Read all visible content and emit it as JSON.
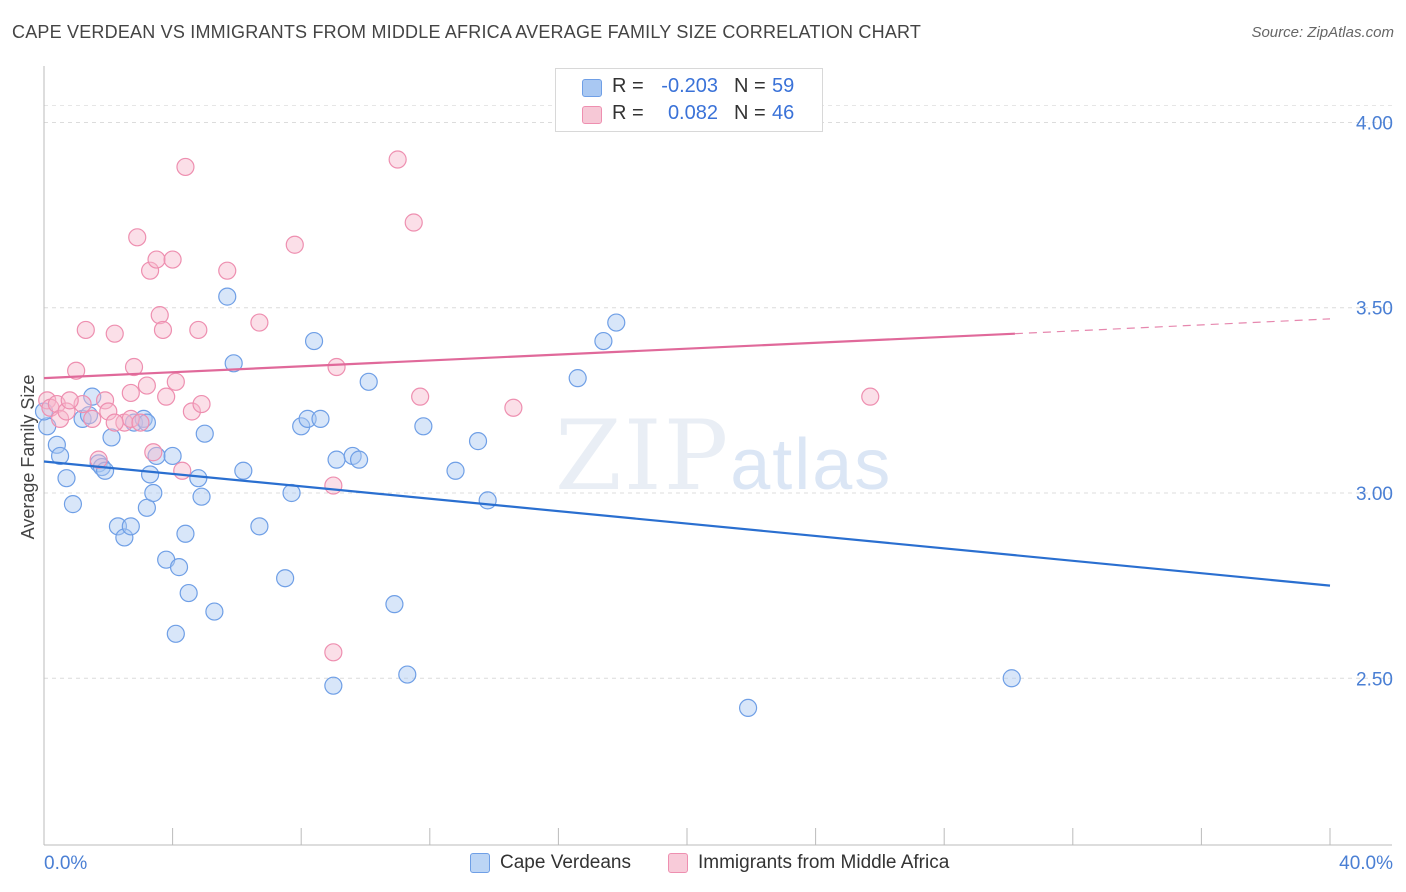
{
  "header": {
    "title": "CAPE VERDEAN VS IMMIGRANTS FROM MIDDLE AFRICA AVERAGE FAMILY SIZE CORRELATION CHART",
    "source": "Source: ZipAtlas.com"
  },
  "watermark": {
    "zip": "ZIP",
    "atlas": "atlas"
  },
  "legend": {
    "rows": [
      {
        "r_label": "R =",
        "r_value": "-0.203",
        "n_label": "N =",
        "n_value": "59",
        "color": "#a9c8f2"
      },
      {
        "r_label": "R =",
        "r_value": "0.082",
        "n_label": "N =",
        "n_value": "46",
        "color": "#f6b9cb"
      }
    ]
  },
  "bottom_legend": {
    "items": [
      {
        "label": "Cape Verdeans",
        "color": "#a9c8f2"
      },
      {
        "label": "Immigrants from Middle Africa",
        "color": "#f6b9cb"
      }
    ]
  },
  "chart_data": {
    "type": "scatter",
    "ylabel": "Average Family Size",
    "xlim": [
      0,
      0.4
    ],
    "ylim": [
      2.05,
      4.12
    ],
    "x_tick_labels": [
      "0.0%",
      "40.0%"
    ],
    "y_ticks": [
      2.5,
      3.0,
      3.5,
      4.0
    ],
    "y_tick_labels": [
      "2.50",
      "3.00",
      "3.50",
      "4.00"
    ],
    "grid": true,
    "series": [
      {
        "name": "Cape Verdeans",
        "color": "#6f9fe6",
        "fill": "#a9c8f2",
        "trend": {
          "x": [
            0.0,
            0.4
          ],
          "y": [
            3.085,
            2.75
          ],
          "color": "#2a6fd0"
        },
        "points": [
          [
            0.001,
            3.18
          ],
          [
            0.004,
            3.13
          ],
          [
            0.005,
            3.1
          ],
          [
            0.007,
            3.04
          ],
          [
            0.009,
            2.97
          ],
          [
            0.012,
            3.2
          ],
          [
            0.014,
            3.21
          ],
          [
            0.015,
            3.26
          ],
          [
            0.017,
            3.08
          ],
          [
            0.018,
            3.07
          ],
          [
            0.019,
            3.06
          ],
          [
            0.021,
            3.15
          ],
          [
            0.023,
            2.91
          ],
          [
            0.025,
            2.88
          ],
          [
            0.027,
            2.91
          ],
          [
            0.028,
            3.19
          ],
          [
            0.031,
            3.2
          ],
          [
            0.032,
            2.96
          ],
          [
            0.033,
            3.05
          ],
          [
            0.032,
            3.19
          ],
          [
            0.035,
            3.1
          ],
          [
            0.038,
            2.82
          ],
          [
            0.04,
            3.1
          ],
          [
            0.041,
            2.62
          ],
          [
            0.042,
            2.8
          ],
          [
            0.044,
            2.89
          ],
          [
            0.045,
            2.73
          ],
          [
            0.048,
            3.04
          ],
          [
            0.049,
            2.99
          ],
          [
            0.05,
            3.16
          ],
          [
            0.053,
            2.68
          ],
          [
            0.057,
            3.53
          ],
          [
            0.059,
            3.35
          ],
          [
            0.062,
            3.06
          ],
          [
            0.067,
            2.91
          ],
          [
            0.075,
            2.77
          ],
          [
            0.077,
            3.0
          ],
          [
            0.08,
            3.18
          ],
          [
            0.082,
            3.2
          ],
          [
            0.084,
            3.41
          ],
          [
            0.086,
            3.2
          ],
          [
            0.09,
            2.48
          ],
          [
            0.091,
            3.09
          ],
          [
            0.096,
            3.1
          ],
          [
            0.098,
            3.09
          ],
          [
            0.101,
            3.3
          ],
          [
            0.109,
            2.7
          ],
          [
            0.113,
            2.51
          ],
          [
            0.118,
            3.18
          ],
          [
            0.128,
            3.06
          ],
          [
            0.135,
            3.14
          ],
          [
            0.138,
            2.98
          ],
          [
            0.166,
            3.31
          ],
          [
            0.174,
            3.41
          ],
          [
            0.178,
            3.46
          ],
          [
            0.219,
            2.42
          ],
          [
            0.301,
            2.5
          ],
          [
            0.0,
            3.22
          ],
          [
            0.034,
            3.0
          ]
        ]
      },
      {
        "name": "Immigrants from Middle Africa",
        "color": "#ee8fb0",
        "fill": "#f6b9cb",
        "trend": {
          "x": [
            0.0,
            0.302
          ],
          "y": [
            3.31,
            3.43
          ],
          "color": "#e0699a",
          "dashed_to": [
            0.4,
            3.47
          ]
        },
        "points": [
          [
            0.001,
            3.25
          ],
          [
            0.002,
            3.23
          ],
          [
            0.004,
            3.24
          ],
          [
            0.005,
            3.2
          ],
          [
            0.007,
            3.22
          ],
          [
            0.01,
            3.33
          ],
          [
            0.012,
            3.24
          ],
          [
            0.013,
            3.44
          ],
          [
            0.015,
            3.2
          ],
          [
            0.017,
            3.09
          ],
          [
            0.019,
            3.25
          ],
          [
            0.02,
            3.22
          ],
          [
            0.022,
            3.43
          ],
          [
            0.025,
            3.19
          ],
          [
            0.027,
            3.27
          ],
          [
            0.027,
            3.2
          ],
          [
            0.028,
            3.34
          ],
          [
            0.029,
            3.69
          ],
          [
            0.03,
            3.19
          ],
          [
            0.032,
            3.29
          ],
          [
            0.033,
            3.6
          ],
          [
            0.034,
            3.11
          ],
          [
            0.035,
            3.63
          ],
          [
            0.036,
            3.48
          ],
          [
            0.037,
            3.44
          ],
          [
            0.038,
            3.26
          ],
          [
            0.04,
            3.63
          ],
          [
            0.041,
            3.3
          ],
          [
            0.043,
            3.06
          ],
          [
            0.044,
            3.88
          ],
          [
            0.046,
            3.22
          ],
          [
            0.048,
            3.44
          ],
          [
            0.049,
            3.24
          ],
          [
            0.057,
            3.6
          ],
          [
            0.067,
            3.46
          ],
          [
            0.078,
            3.67
          ],
          [
            0.09,
            2.57
          ],
          [
            0.09,
            3.02
          ],
          [
            0.091,
            3.34
          ],
          [
            0.11,
            3.9
          ],
          [
            0.115,
            3.73
          ],
          [
            0.117,
            3.26
          ],
          [
            0.146,
            3.23
          ],
          [
            0.257,
            3.26
          ],
          [
            0.022,
            3.19
          ],
          [
            0.008,
            3.25
          ]
        ]
      }
    ]
  }
}
